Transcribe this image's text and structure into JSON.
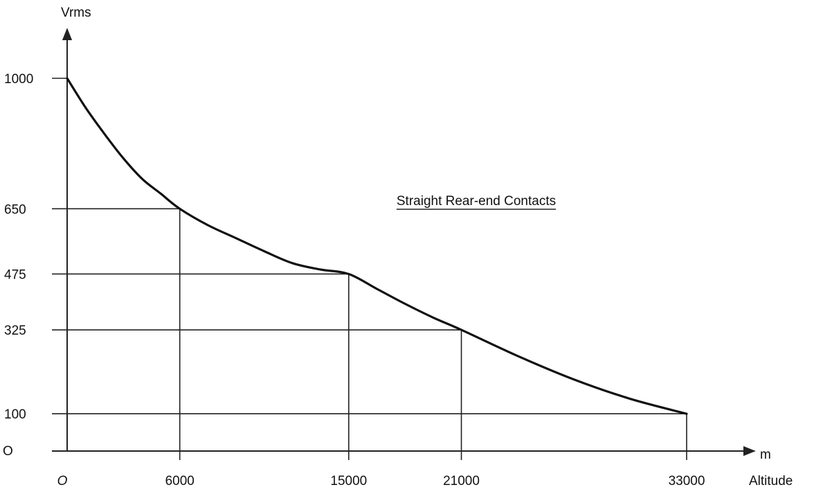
{
  "chart_data": {
    "type": "line",
    "title": "Straight Rear-end Contacts",
    "ylabel": "Vrms",
    "xunit": "m",
    "xlabel": "Altitude",
    "y_ticks": [
      "1000",
      "650",
      "475",
      "325",
      "100"
    ],
    "y_origin_label": "O",
    "x_ticks": [
      "6000",
      "15000",
      "21000",
      "33000"
    ],
    "x_origin_label": "O",
    "x_tick_values": [
      6000,
      15000,
      21000,
      33000
    ],
    "y_tick_values": [
      1000,
      650,
      475,
      325,
      100
    ],
    "ylim": [
      0,
      1000
    ],
    "xlim": [
      0,
      33000
    ],
    "series": [
      {
        "x": [
          0,
          1000,
          2000,
          3000,
          4000,
          5000,
          6000,
          7500,
          9000,
          10500,
          12000,
          13500,
          15000,
          16500,
          18000,
          19500,
          21000,
          24000,
          27000,
          30000,
          33000
        ],
        "y": [
          1000,
          920,
          850,
          785,
          730,
          690,
          650,
          606,
          571,
          536,
          504,
          487,
          475,
          435,
          395,
          358,
          325,
          255,
          192,
          140,
          100
        ]
      }
    ],
    "guides": [
      {
        "x": 6000,
        "y": 650
      },
      {
        "x": 15000,
        "y": 475
      },
      {
        "x": 21000,
        "y": 325
      },
      {
        "x": 33000,
        "y": 100
      }
    ],
    "grid": false,
    "legend": "none"
  }
}
